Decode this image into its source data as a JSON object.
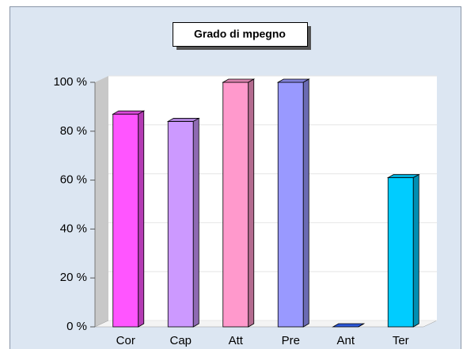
{
  "chart_data": {
    "type": "bar",
    "title": "Grado di mpegno",
    "categories": [
      "Cor",
      "Cap",
      "Att",
      "Pre",
      "Ant",
      "Ter"
    ],
    "values": [
      87,
      84,
      100,
      100,
      0,
      61
    ],
    "colors": [
      "#ff55ff",
      "#cc99ff",
      "#ff99cc",
      "#9999ff",
      "#3366ff",
      "#00ccff"
    ],
    "ylim": [
      0,
      100
    ],
    "yticks": [
      {
        "value": 0,
        "label": "0 %"
      },
      {
        "value": 20,
        "label": "20 %"
      },
      {
        "value": 40,
        "label": "40 %"
      },
      {
        "value": 60,
        "label": "60 %"
      },
      {
        "value": 80,
        "label": "80 %"
      },
      {
        "value": 100,
        "label": "100 %"
      }
    ],
    "grid": true
  }
}
